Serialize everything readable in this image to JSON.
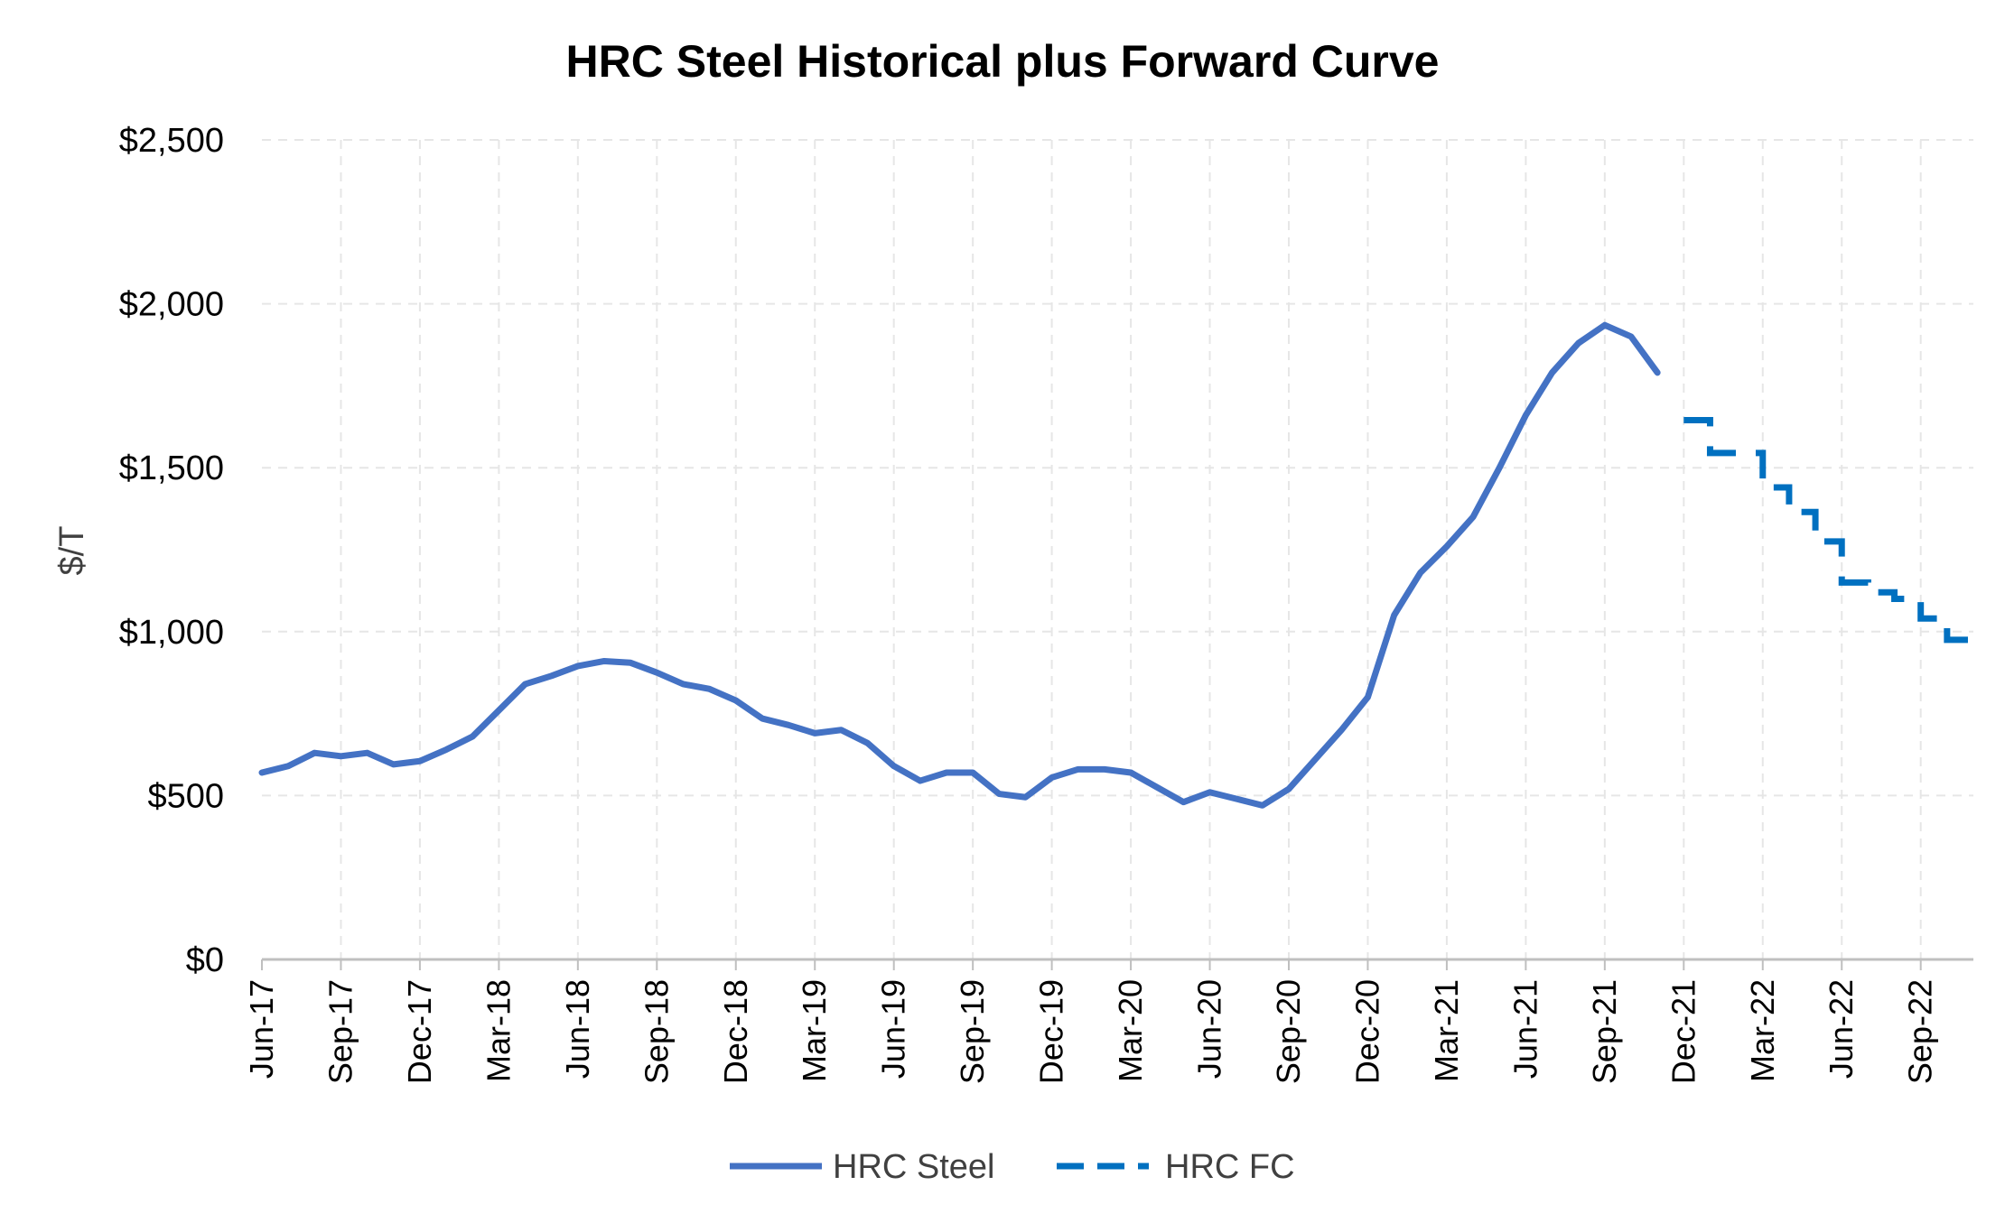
{
  "chart_data": {
    "type": "line",
    "title": "HRC Steel Historical plus Forward Curve",
    "xlabel": "",
    "ylabel": "$/T",
    "ylim": [
      0,
      2500
    ],
    "y_ticks": [
      0,
      500,
      1000,
      1500,
      2000,
      2500
    ],
    "y_tick_labels": [
      "$0",
      "$500",
      "$1,000",
      "$1,500",
      "$2,000",
      "$2,500"
    ],
    "x_range": [
      "2017-06",
      "2022-11"
    ],
    "x_tick_labels": [
      "Jun-17",
      "Sep-17",
      "Dec-17",
      "Mar-18",
      "Jun-18",
      "Sep-18",
      "Dec-18",
      "Mar-19",
      "Jun-19",
      "Sep-19",
      "Dec-19",
      "Mar-20",
      "Jun-20",
      "Sep-20",
      "Dec-20",
      "Mar-21",
      "Jun-21",
      "Sep-21",
      "Dec-21",
      "Mar-22",
      "Jun-22",
      "Sep-22"
    ],
    "grid": true,
    "legend_position": "bottom",
    "series": [
      {
        "name": "HRC Steel",
        "style": "solid",
        "color": "#4472C4",
        "points": [
          [
            "2017-06",
            570
          ],
          [
            "2017-07",
            590
          ],
          [
            "2017-08",
            630
          ],
          [
            "2017-09",
            620
          ],
          [
            "2017-10",
            630
          ],
          [
            "2017-11",
            595
          ],
          [
            "2017-12",
            605
          ],
          [
            "2018-01",
            640
          ],
          [
            "2018-02",
            680
          ],
          [
            "2018-03",
            760
          ],
          [
            "2018-04",
            840
          ],
          [
            "2018-05",
            865
          ],
          [
            "2018-06",
            895
          ],
          [
            "2018-07",
            910
          ],
          [
            "2018-08",
            905
          ],
          [
            "2018-09",
            875
          ],
          [
            "2018-10",
            840
          ],
          [
            "2018-11",
            825
          ],
          [
            "2018-12",
            790
          ],
          [
            "2019-01",
            735
          ],
          [
            "2019-02",
            715
          ],
          [
            "2019-03",
            690
          ],
          [
            "2019-04",
            700
          ],
          [
            "2019-05",
            660
          ],
          [
            "2019-06",
            590
          ],
          [
            "2019-07",
            545
          ],
          [
            "2019-08",
            570
          ],
          [
            "2019-09",
            570
          ],
          [
            "2019-10",
            505
          ],
          [
            "2019-11",
            495
          ],
          [
            "2019-12",
            555
          ],
          [
            "2020-01",
            580
          ],
          [
            "2020-02",
            580
          ],
          [
            "2020-03",
            570
          ],
          [
            "2020-04",
            525
          ],
          [
            "2020-05",
            480
          ],
          [
            "2020-06",
            510
          ],
          [
            "2020-07",
            490
          ],
          [
            "2020-08",
            470
          ],
          [
            "2020-09",
            520
          ],
          [
            "2020-10",
            610
          ],
          [
            "2020-11",
            700
          ],
          [
            "2020-12",
            800
          ],
          [
            "2021-01",
            1050
          ],
          [
            "2021-02",
            1180
          ],
          [
            "2021-03",
            1260
          ],
          [
            "2021-04",
            1350
          ],
          [
            "2021-05",
            1500
          ],
          [
            "2021-06",
            1660
          ],
          [
            "2021-07",
            1790
          ],
          [
            "2021-08",
            1880
          ],
          [
            "2021-09",
            1935
          ],
          [
            "2021-10",
            1900
          ],
          [
            "2021-11",
            1790
          ]
        ]
      },
      {
        "name": "HRC FC",
        "style": "dashed",
        "color": "#0070C0",
        "points": [
          [
            "2021-12",
            1645
          ],
          [
            "2022-01",
            1545
          ],
          [
            "2022-02",
            1545
          ],
          [
            "2022-03",
            1440
          ],
          [
            "2022-04",
            1365
          ],
          [
            "2022-05",
            1275
          ],
          [
            "2022-06",
            1150
          ],
          [
            "2022-07",
            1120
          ],
          [
            "2022-08",
            1100
          ],
          [
            "2022-09",
            1040
          ],
          [
            "2022-10",
            975
          ],
          [
            "2022-11",
            975
          ]
        ]
      }
    ]
  }
}
